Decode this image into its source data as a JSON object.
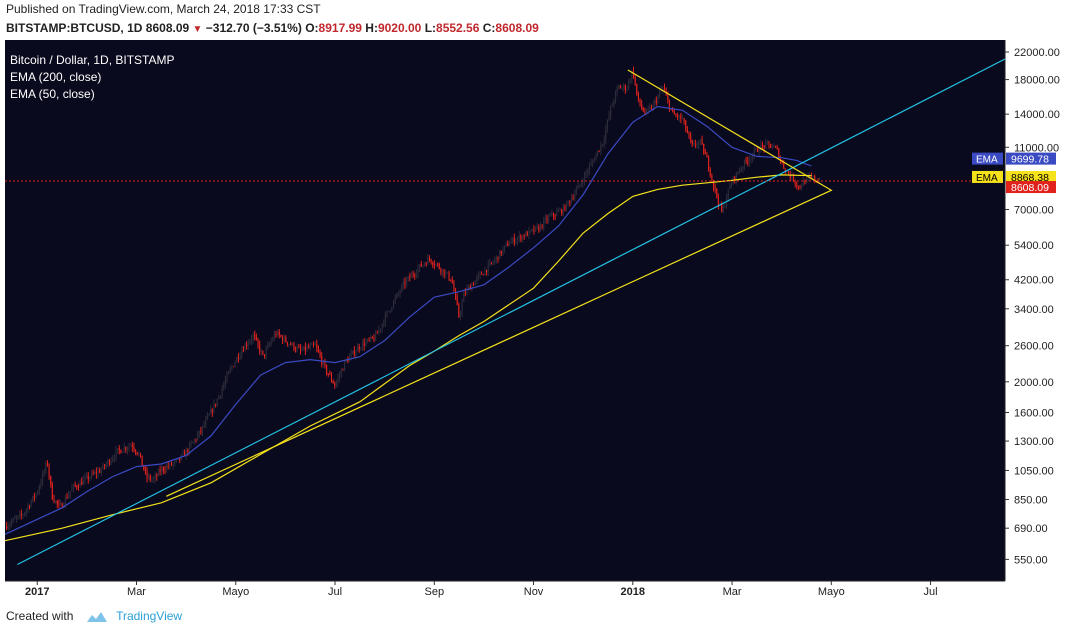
{
  "header": {
    "published": "Published on TradingView.com, March 24, 2018 17:33 CST",
    "symbol": "BITSTAMP:BTCUSD, 1D",
    "last": "8608.09",
    "change": "−312.70 (−3.51%)",
    "o_label": "O:",
    "o": "8917.99",
    "h_label": "H:",
    "h": "9020.00",
    "l_label": "L:",
    "l": "8552.56",
    "c_label": "C:",
    "c": "8608.09"
  },
  "legend": {
    "title": "Bitcoin / Dollar, 1D, BITSTAMP",
    "ema200": "EMA (200, close)",
    "ema50": "EMA (50, close)"
  },
  "footer": {
    "created_with": "Created with",
    "brand": "TradingView"
  },
  "colors": {
    "background": "#0a0a1e",
    "bull": "#2b2b3a",
    "bear": "#e0221c",
    "ema200": "#f5e21b",
    "ema50": "#3a4ac2",
    "trend": "#22c4e6",
    "triangle": "#f5e21b",
    "price_line": "#e0221c"
  },
  "chart_data": {
    "type": "candlestick",
    "title": "Bitcoin / Dollar, 1D, BITSTAMP",
    "y_scale": "log",
    "y_ticks": [
      "22000.00",
      "18000.00",
      "14000.00",
      "11000.00",
      "7000.00",
      "5400.00",
      "4200.00",
      "3400.00",
      "2600.00",
      "2000.00",
      "1600.00",
      "1300.00",
      "1050.00",
      "850.00",
      "690.00",
      "550.00"
    ],
    "x_ticks": [
      "2017",
      "Mar",
      "Mayo",
      "Jul",
      "Sep",
      "Nov",
      "2018",
      "Mar",
      "Mayo",
      "Jul"
    ],
    "x_tick_months": [
      0,
      2,
      4,
      6,
      8,
      10,
      12,
      14,
      16,
      18
    ],
    "x_start_month": -0.65,
    "x_end_month": 19.5,
    "price_points": [
      [
        -0.65,
        700
      ],
      [
        -0.3,
        760
      ],
      [
        0.0,
        900
      ],
      [
        0.1,
        1000
      ],
      [
        0.2,
        1120
      ],
      [
        0.3,
        870
      ],
      [
        0.45,
        800
      ],
      [
        0.7,
        920
      ],
      [
        1.0,
        990
      ],
      [
        1.3,
        1060
      ],
      [
        1.6,
        1200
      ],
      [
        1.9,
        1270
      ],
      [
        2.05,
        1180
      ],
      [
        2.2,
        1000
      ],
      [
        2.35,
        980
      ],
      [
        2.5,
        1060
      ],
      [
        2.8,
        1110
      ],
      [
        3.0,
        1200
      ],
      [
        3.3,
        1400
      ],
      [
        3.6,
        1720
      ],
      [
        3.9,
        2200
      ],
      [
        4.1,
        2500
      ],
      [
        4.35,
        2800
      ],
      [
        4.55,
        2400
      ],
      [
        4.8,
        2850
      ],
      [
        5.0,
        2700
      ],
      [
        5.3,
        2500
      ],
      [
        5.6,
        2600
      ],
      [
        5.8,
        2200
      ],
      [
        6.0,
        1950
      ],
      [
        6.2,
        2300
      ],
      [
        6.5,
        2600
      ],
      [
        6.8,
        2750
      ],
      [
        7.1,
        3400
      ],
      [
        7.4,
        4100
      ],
      [
        7.7,
        4600
      ],
      [
        7.9,
        4900
      ],
      [
        8.1,
        4600
      ],
      [
        8.35,
        4200
      ],
      [
        8.5,
        3200
      ],
      [
        8.6,
        3800
      ],
      [
        8.9,
        4300
      ],
      [
        9.2,
        4800
      ],
      [
        9.5,
        5500
      ],
      [
        9.8,
        5800
      ],
      [
        10.1,
        6100
      ],
      [
        10.3,
        6600
      ],
      [
        10.6,
        7000
      ],
      [
        10.9,
        8200
      ],
      [
        11.2,
        10000
      ],
      [
        11.4,
        11500
      ],
      [
        11.55,
        14500
      ],
      [
        11.7,
        17000
      ],
      [
        11.88,
        17000
      ],
      [
        12.0,
        19300
      ],
      [
        12.1,
        15500
      ],
      [
        12.25,
        14000
      ],
      [
        12.4,
        14800
      ],
      [
        12.6,
        17000
      ],
      [
        12.8,
        14000
      ],
      [
        13.0,
        13500
      ],
      [
        13.2,
        11000
      ],
      [
        13.35,
        11500
      ],
      [
        13.5,
        10000
      ],
      [
        13.65,
        8100
      ],
      [
        13.8,
        6800
      ],
      [
        13.9,
        7800
      ],
      [
        14.0,
        8600
      ],
      [
        14.2,
        9600
      ],
      [
        14.4,
        10400
      ],
      [
        14.55,
        11000
      ],
      [
        14.75,
        11200
      ],
      [
        14.9,
        10800
      ],
      [
        15.0,
        9800
      ],
      [
        15.1,
        9200
      ],
      [
        15.25,
        8700
      ],
      [
        15.35,
        8200
      ],
      [
        15.45,
        8600
      ],
      [
        15.6,
        8800
      ],
      [
        15.75,
        8608
      ]
    ],
    "ema200_points": [
      [
        -0.65,
        630
      ],
      [
        0.5,
        690
      ],
      [
        1.5,
        760
      ],
      [
        2.5,
        830
      ],
      [
        3.5,
        960
      ],
      [
        4.5,
        1180
      ],
      [
        5.5,
        1450
      ],
      [
        6.5,
        1730
      ],
      [
        7.5,
        2250
      ],
      [
        8.0,
        2500
      ],
      [
        8.5,
        2800
      ],
      [
        9.0,
        3100
      ],
      [
        10.0,
        3950
      ],
      [
        10.5,
        4800
      ],
      [
        11.0,
        5900
      ],
      [
        11.5,
        6800
      ],
      [
        12.0,
        7700
      ],
      [
        12.5,
        8100
      ],
      [
        13.0,
        8350
      ],
      [
        13.5,
        8500
      ],
      [
        14.0,
        8650
      ],
      [
        14.5,
        8850
      ],
      [
        15.0,
        9000
      ],
      [
        15.6,
        8950
      ]
    ],
    "ema50_points": [
      [
        -0.65,
        660
      ],
      [
        0.5,
        800
      ],
      [
        1.0,
        900
      ],
      [
        1.5,
        1000
      ],
      [
        2.0,
        1080
      ],
      [
        2.5,
        1100
      ],
      [
        3.0,
        1170
      ],
      [
        3.5,
        1350
      ],
      [
        4.0,
        1700
      ],
      [
        4.5,
        2100
      ],
      [
        5.0,
        2300
      ],
      [
        5.5,
        2350
      ],
      [
        6.0,
        2300
      ],
      [
        6.5,
        2400
      ],
      [
        7.0,
        2700
      ],
      [
        7.5,
        3200
      ],
      [
        8.0,
        3700
      ],
      [
        8.5,
        3850
      ],
      [
        9.0,
        4050
      ],
      [
        9.5,
        4600
      ],
      [
        10.0,
        5300
      ],
      [
        10.5,
        6200
      ],
      [
        11.0,
        7800
      ],
      [
        11.5,
        10500
      ],
      [
        12.0,
        13200
      ],
      [
        12.5,
        14800
      ],
      [
        13.0,
        14400
      ],
      [
        13.5,
        12800
      ],
      [
        14.0,
        11000
      ],
      [
        14.5,
        10300
      ],
      [
        15.0,
        10200
      ],
      [
        15.3,
        10000
      ],
      [
        15.6,
        9600
      ]
    ],
    "trend_line": [
      [
        -0.4,
        530
      ],
      [
        19.5,
        20900
      ]
    ],
    "triangle": [
      [
        11.9,
        19300
      ],
      [
        16.0,
        8050
      ],
      [
        2.6,
        870
      ]
    ],
    "last_price": 8608.09,
    "price_labels": [
      {
        "text": "EMA",
        "value": "9699.78",
        "color": "#3a4ac2",
        "at": 9699.78
      },
      {
        "text": "EMA",
        "value": "8868.38",
        "color": "#f5e21b",
        "at": 8868.38
      },
      {
        "text": "",
        "value": "8608.09",
        "color": "#e0221c",
        "at": 8608.09
      }
    ]
  }
}
